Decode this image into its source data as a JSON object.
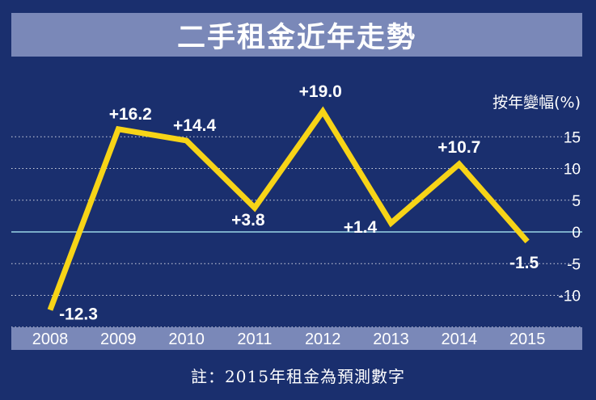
{
  "title": "二手租金近年走勢",
  "footnote": "註：2015年租金為預測數字",
  "colors": {
    "background": "#1a2f6e",
    "title_bar": "#7a88b8",
    "line": "#f7d417",
    "zero_line": "#9ad6e6",
    "x_axis_band": "#7a88b8",
    "text": "#ffffff"
  },
  "chart_data": {
    "type": "line",
    "title": "二手租金近年走勢",
    "xlabel": "",
    "ylabel": "按年變幅(%)",
    "categories": [
      "2008",
      "2009",
      "2010",
      "2011",
      "2012",
      "2013",
      "2014",
      "2015"
    ],
    "series": [
      {
        "values": [
          -12.3,
          16.2,
          14.4,
          3.8,
          19.0,
          1.4,
          10.7,
          -1.5
        ],
        "labels": [
          "-12.3",
          "+16.2",
          "+14.4",
          "+3.8",
          "+19.0",
          "+1.4",
          "+10.7",
          "-1.5"
        ]
      }
    ],
    "yticks": [
      15,
      10,
      5,
      0,
      -5,
      -10
    ],
    "ylim": [
      -14,
      20
    ],
    "grid": true,
    "grid_style": "dotted"
  }
}
